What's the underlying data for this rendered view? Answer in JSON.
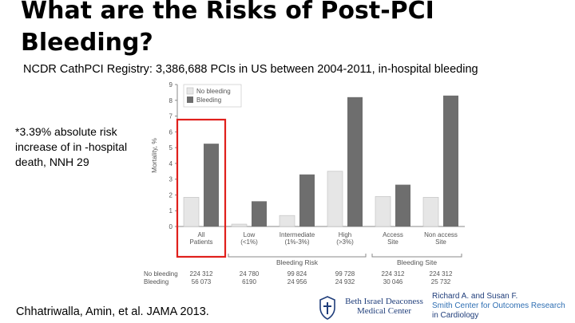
{
  "slide": {
    "title": "What are the Risks of Post-PCI Bleeding?",
    "subtitle": "NCDR CathPCI Registry: 3,386,688 PCIs in US between 2004-2011, in-hospital bleeding",
    "note": "*3.39% absolute risk increase of in -hospital death, NNH 29",
    "citation": "Chhatriwalla, Amin, et al.  JAMA 2013.",
    "logo": {
      "name": "Beth Israel Deaconess Medical Center"
    },
    "center": {
      "line1": "Richard A. and Susan F.",
      "line2": "Smith Center for Outcomes Research",
      "line3": "in Cardiology"
    }
  },
  "colors": {
    "no_bleeding": "#e6e6e6",
    "bleeding": "#6e6e6e",
    "highlight": "#e0201c",
    "axis": "#888888",
    "text": "#555555"
  },
  "chart_data": {
    "type": "bar",
    "ylabel": "Mortality, %",
    "ylim": [
      0,
      9
    ],
    "yticks": [
      0,
      1,
      2,
      3,
      4,
      5,
      6,
      7,
      8,
      9
    ],
    "categories": [
      "All Patients",
      "Low (<1%)",
      "Intermediate (1%-3%)",
      "High (>3%)",
      "Access Site",
      "Non access Site"
    ],
    "category_lines": [
      [
        "All",
        "Patients"
      ],
      [
        "Low",
        "(<1%)"
      ],
      [
        "Intermediate",
        "(1%-3%)"
      ],
      [
        "High",
        "(>3%)"
      ],
      [
        "Access",
        "Site"
      ],
      [
        "Non access",
        "Site"
      ]
    ],
    "series": [
      {
        "name": "No bleeding",
        "values": [
          1.85,
          0.15,
          0.7,
          3.5,
          1.9,
          1.85
        ]
      },
      {
        "name": "Bleeding",
        "values": [
          5.25,
          1.6,
          3.3,
          8.2,
          2.65,
          8.3
        ]
      }
    ],
    "group_labels": [
      {
        "label": "Bleeding Risk",
        "from": 1,
        "to": 3
      },
      {
        "label": "Bleeding Site",
        "from": 4,
        "to": 5
      }
    ],
    "counts": [
      {
        "label": "No bleeding",
        "values": [
          "224 312",
          "24 780",
          "99 824",
          "99 728",
          "224 312",
          "224 312"
        ]
      },
      {
        "label": "Bleeding",
        "values": [
          "56 073",
          "6190",
          "24 956",
          "24 932",
          "30 046",
          "25 732"
        ]
      }
    ],
    "legend": {
      "position": "top-left",
      "entries": [
        "No bleeding",
        "Bleeding"
      ]
    },
    "highlighted_category": "All Patients",
    "grid": false
  }
}
